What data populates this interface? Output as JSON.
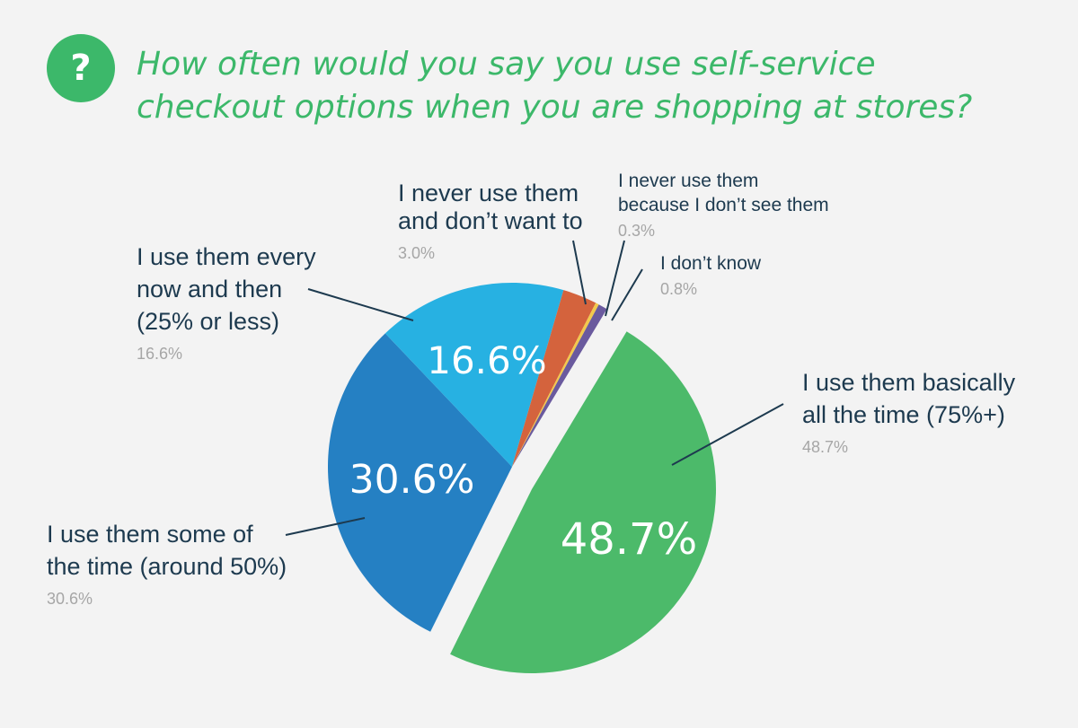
{
  "header": {
    "icon": "question-mark-icon",
    "icon_glyph": "?",
    "title_lines": [
      "How often would you say you use self-service",
      "checkout options when you are shopping at stores?"
    ]
  },
  "colors": {
    "title": "#3cb86a",
    "background": "#f3f3f3",
    "label_text": "#1d3a4f",
    "percent_text": "#a6a6a6"
  },
  "chart_data": {
    "type": "pie",
    "title": "How often would you say you use self-service checkout options when you are shopping at stores?",
    "unit": "%",
    "categories": [
      "I use them basically all the time (75%+)",
      "I use them some of the time (around 50%)",
      "I use them every now and then (25% or less)",
      "I never use them and don’t want to",
      "I never use them because I don’t see them",
      "I don’t know"
    ],
    "values": [
      48.7,
      30.6,
      16.6,
      3.0,
      0.3,
      0.8
    ],
    "slices": [
      {
        "label": "I use them basically all the time (75%+)",
        "label_lines": [
          "I use them basically",
          "all the time (75%+)"
        ],
        "value": 48.7,
        "value_text": "48.7%",
        "inside_label": "48.7%",
        "color": "#4cba6a"
      },
      {
        "label": "I use them some of the time (around 50%)",
        "label_lines": [
          "I use them some of",
          "the time (around 50%)"
        ],
        "value": 30.6,
        "value_text": "30.6%",
        "inside_label": "30.6%",
        "color": "#2580c3"
      },
      {
        "label": "I use them every now and then (25% or less)",
        "label_lines": [
          "I use them every",
          "now and then",
          "(25% or less)"
        ],
        "value": 16.6,
        "value_text": "16.6%",
        "inside_label": "16.6%",
        "color": "#27b1e2"
      },
      {
        "label": "I never use them and don’t want to",
        "label_lines": [
          "I never use them",
          "and don’t want to"
        ],
        "value": 3.0,
        "value_text": "3.0%",
        "color": "#d4633d"
      },
      {
        "label": "I never use them because I don’t see them",
        "label_lines": [
          "I never use them",
          "because I don’t see them"
        ],
        "value": 0.3,
        "value_text": "0.3%",
        "color": "#f2c94c"
      },
      {
        "label": "I don’t know",
        "label_lines": [
          "I don’t know"
        ],
        "value": 0.8,
        "value_text": "0.8%",
        "color": "#6a5a9e"
      }
    ],
    "legend": "callout labels around the pie"
  }
}
